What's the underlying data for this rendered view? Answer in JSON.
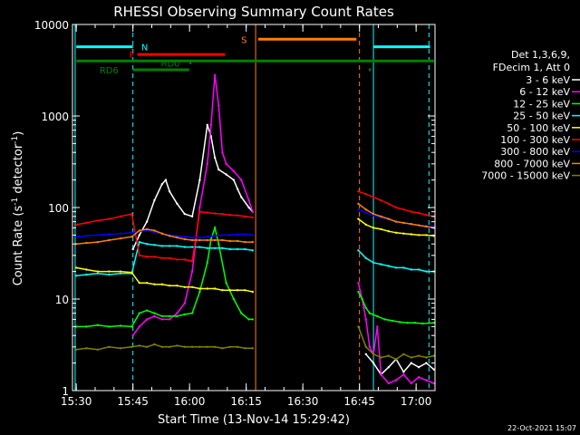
{
  "chart_data": {
    "type": "line",
    "title": "RHESSI Observing Summary Count Rates",
    "xlabel": "Start Time (13-Nov-14 15:29:42)",
    "ylabel_main": "Count Rate (s",
    "ylabel_sup1": "-1",
    "ylabel_mid": " detector",
    "ylabel_sup2": "-1",
    "ylabel_end": ")",
    "yscale": "log",
    "xlim_minutes": [
      -0.7,
      95.3
    ],
    "ylim": [
      1,
      10000
    ],
    "x_ticks": [
      {
        "minute": 0.3,
        "label": "15:30"
      },
      {
        "minute": 15.3,
        "label": "15:45"
      },
      {
        "minute": 30.3,
        "label": "16:00"
      },
      {
        "minute": 45.3,
        "label": "16:15"
      },
      {
        "minute": 60.3,
        "label": "16:30"
      },
      {
        "minute": 75.3,
        "label": "16:45"
      },
      {
        "minute": 90.3,
        "label": "17:00"
      }
    ],
    "y_ticks": [
      {
        "value": 1,
        "label": "1"
      },
      {
        "value": 10,
        "label": "10"
      },
      {
        "value": 100,
        "label": "100"
      },
      {
        "value": 1000,
        "label": "1000"
      },
      {
        "value": 10000,
        "label": "10000"
      }
    ],
    "legend_header": [
      "Det 1,3,6,9,",
      "FDecim 1, Att 0"
    ],
    "legend_placement": "right",
    "series": [
      {
        "name": "3 - 6 keV",
        "color": "#ffffff",
        "segments": [
          {
            "x": [
              15.3,
              17,
              19,
              21,
              23,
              24,
              25,
              27,
              29,
              31,
              33,
              35,
              36,
              37,
              38,
              40,
              42,
              43,
              44,
              46,
              47
            ],
            "y": [
              35,
              50,
              70,
              120,
              180,
              200,
              150,
              110,
              85,
              80,
              200,
              800,
              600,
              350,
              260,
              230,
              200,
              160,
              130,
              100,
              90
            ]
          },
          {
            "x": [
              77,
              79,
              81,
              83,
              85,
              87,
              89,
              91,
              93,
              95
            ],
            "y": [
              2.5,
              2,
              1.5,
              1.8,
              2.2,
              1.6,
              2,
              1.8,
              2,
              1.7
            ]
          }
        ]
      },
      {
        "name": "6 - 12 keV",
        "color": "#ff00ff",
        "segments": [
          {
            "x": [
              15.3,
              17,
              19,
              21,
              23,
              25,
              27,
              29,
              31,
              33,
              35,
              36,
              37,
              38,
              39,
              40,
              42,
              44,
              46,
              47
            ],
            "y": [
              4,
              5,
              6,
              6.5,
              6,
              6,
              7,
              9,
              20,
              100,
              300,
              800,
              2800,
              1300,
              400,
              300,
              250,
              200,
              120,
              90
            ]
          },
          {
            "x": [
              75,
              76,
              77,
              78,
              79,
              80,
              81,
              83,
              85,
              87,
              89,
              91,
              93,
              95
            ],
            "y": [
              15,
              10,
              6,
              3,
              2.5,
              5,
              1.5,
              1.2,
              1.3,
              1.5,
              1.2,
              1.4,
              1.3,
              1.2
            ]
          }
        ]
      },
      {
        "name": "12 - 25 keV",
        "color": "#00ff00",
        "segments": [
          {
            "x": [
              0.3,
              3,
              6,
              9,
              12,
              15,
              17,
              19,
              21,
              23,
              25,
              27,
              29,
              31,
              33,
              35,
              36,
              37,
              38,
              40,
              42,
              44,
              46,
              47
            ],
            "y": [
              5,
              5,
              5.2,
              5,
              5.1,
              5,
              7,
              7.5,
              7,
              6.5,
              6.5,
              6.5,
              6.8,
              7,
              12,
              25,
              45,
              60,
              40,
              15,
              10,
              7,
              6,
              6
            ]
          },
          {
            "x": [
              75,
              76,
              77,
              78,
              80,
              82,
              84,
              86,
              88,
              90,
              92,
              95
            ],
            "y": [
              12,
              10,
              8,
              7,
              6.5,
              6,
              5.8,
              5.6,
              5.5,
              5.5,
              5.4,
              5.5
            ]
          }
        ]
      },
      {
        "name": "25 - 50 keV",
        "color": "#00ffff",
        "segments": [
          {
            "x": [
              0.3,
              3,
              6,
              9,
              12,
              15,
              17,
              19,
              21,
              23,
              25,
              27,
              29,
              31,
              33,
              35,
              37,
              39,
              41,
              43,
              45,
              47
            ],
            "y": [
              18,
              18.5,
              19,
              18.5,
              19,
              19,
              42,
              40,
              39,
              38,
              38,
              38,
              37,
              37,
              37,
              36,
              36,
              36,
              35,
              35,
              35,
              34
            ]
          },
          {
            "x": [
              75,
              77,
              79,
              81,
              83,
              85,
              87,
              89,
              91,
              93,
              95
            ],
            "y": [
              34,
              28,
              25,
              24,
              23,
              22,
              22,
              21,
              21,
              20,
              20
            ]
          }
        ]
      },
      {
        "name": "50 - 100 keV",
        "color": "#ffff00",
        "segments": [
          {
            "x": [
              0.3,
              3,
              6,
              9,
              12,
              15,
              17,
              19,
              21,
              23,
              25,
              27,
              29,
              31,
              33,
              35,
              37,
              39,
              41,
              43,
              45,
              47
            ],
            "y": [
              22,
              21,
              20,
              20,
              20,
              19.5,
              15,
              15,
              14.5,
              14.5,
              14,
              14,
              13.5,
              13.5,
              13,
              13,
              13,
              12.5,
              12.5,
              12.5,
              12.5,
              12
            ]
          },
          {
            "x": [
              75,
              77,
              79,
              81,
              83,
              85,
              87,
              89,
              91,
              93,
              95
            ],
            "y": [
              75,
              65,
              60,
              58,
              55,
              53,
              52,
              51,
              50,
              50,
              49
            ]
          }
        ]
      },
      {
        "name": "100 - 300 keV",
        "color": "#ff0000",
        "segments": [
          {
            "x": [
              0.3,
              3,
              6,
              9,
              12,
              15,
              17,
              19,
              21,
              23,
              25,
              27,
              29,
              31,
              33,
              35,
              37,
              39,
              41,
              43,
              45,
              47
            ],
            "y": [
              65,
              68,
              72,
              75,
              80,
              85,
              30,
              29,
              29,
              28,
              28,
              27,
              27,
              26,
              90,
              88,
              86,
              85,
              83,
              82,
              80,
              78
            ]
          },
          {
            "x": [
              75,
              77,
              79,
              81,
              83,
              85,
              87,
              89,
              91,
              93,
              95
            ],
            "y": [
              150,
              140,
              130,
              120,
              110,
              100,
              95,
              90,
              87,
              83,
              80
            ]
          }
        ]
      },
      {
        "name": "300 - 800 keV",
        "color": "#0000ff",
        "segments": [
          {
            "x": [
              0.3,
              3,
              6,
              9,
              12,
              15,
              17,
              19,
              21,
              23,
              25,
              27,
              29,
              31,
              33,
              35,
              37,
              39,
              41,
              43,
              45,
              47
            ],
            "y": [
              48,
              49,
              50,
              51,
              52,
              53,
              55,
              56,
              54,
              52,
              50,
              49,
              48,
              47,
              47,
              48,
              49,
              50,
              50,
              51,
              51,
              50
            ]
          },
          {
            "x": [
              75,
              77,
              79,
              81,
              83,
              85,
              87,
              89,
              91,
              93,
              95
            ],
            "y": [
              95,
              88,
              82,
              78,
              74,
              70,
              68,
              66,
              64,
              63,
              62
            ]
          }
        ]
      },
      {
        "name": "800 - 7000 keV",
        "color": "#ff8000",
        "segments": [
          {
            "x": [
              0.3,
              3,
              6,
              9,
              12,
              15,
              17,
              19,
              21,
              23,
              25,
              27,
              29,
              31,
              33,
              35,
              37,
              39,
              41,
              43,
              45,
              47
            ],
            "y": [
              40,
              41,
              42,
              44,
              46,
              48,
              56,
              58,
              56,
              52,
              49,
              47,
              45,
              44,
              44,
              44,
              44,
              44,
              43,
              43,
              42,
              42
            ]
          },
          {
            "x": [
              75,
              77,
              79,
              81,
              83,
              85,
              87,
              89,
              91,
              93,
              95
            ],
            "y": [
              110,
              95,
              85,
              80,
              75,
              70,
              68,
              66,
              64,
              62,
              60
            ]
          }
        ]
      },
      {
        "name": "7000 - 15000 keV",
        "color": "#808000",
        "segments": [
          {
            "x": [
              0.3,
              3,
              6,
              9,
              12,
              15,
              17,
              19,
              21,
              23,
              25,
              27,
              29,
              31,
              33,
              35,
              37,
              39,
              41,
              43,
              45,
              47
            ],
            "y": [
              2.8,
              2.9,
              2.8,
              3,
              2.9,
              3,
              3.1,
              3,
              3.2,
              3,
              3,
              3.1,
              3,
              3,
              3,
              3,
              3,
              2.9,
              3,
              3,
              2.9,
              2.9
            ]
          },
          {
            "x": [
              75,
              77,
              79,
              81,
              83,
              85,
              87,
              89,
              91,
              93,
              95
            ],
            "y": [
              5,
              3,
              2.5,
              2.3,
              2.4,
              2.2,
              2.5,
              2.3,
              2.4,
              2.3,
              2.4
            ]
          }
        ]
      }
    ],
    "vertical_lines": [
      {
        "minute": 0.0,
        "color": "#00ffff",
        "style": "solid"
      },
      {
        "minute": 15.3,
        "color": "#00ffff",
        "style": "dashed"
      },
      {
        "minute": 47.8,
        "color": "#ff8000",
        "style": "solid"
      },
      {
        "minute": 75.3,
        "color": "#ff8000",
        "style": "dashed"
      },
      {
        "minute": 79.0,
        "color": "#00ffff",
        "style": "solid"
      },
      {
        "minute": 93.7,
        "color": "#00ffff",
        "style": "dashed"
      }
    ],
    "flag_bars": [
      {
        "label": "N",
        "color": "#00ffff",
        "value": 5700,
        "spans": [
          [
            0.3,
            15.3
          ],
          [
            79,
            94
          ]
        ],
        "label_minute": 17.5,
        "label_side": "right"
      },
      {
        "label": "S",
        "color": "#ff8000",
        "value": 6900,
        "spans": [
          [
            48.5,
            74.5
          ]
        ],
        "label_minute": 45.5,
        "label_side": "left"
      },
      {
        "label": "F",
        "color": "#ff0000",
        "value": 4700,
        "spans": [
          [
            16.5,
            39.7
          ]
        ],
        "label_minute": 15.7,
        "label_side": "left"
      },
      {
        "label": "",
        "color": "#008000",
        "value": 4000,
        "spans": [
          [
            0.3,
            95
          ]
        ],
        "label_minute": 0,
        "label_side": "none"
      },
      {
        "label": "RD0",
        "color": "#008000",
        "value": 3800,
        "spans": [
          [
            30.3,
            30.8
          ]
        ],
        "label_minute": 22.7,
        "label_side": "right"
      },
      {
        "label": "RD6",
        "color": "#008000",
        "value": 3200,
        "spans": [
          [
            15.3,
            30.2
          ],
          [
            77.8,
            78.3
          ]
        ],
        "label_minute": 11.5,
        "label_side": "left"
      }
    ],
    "grid": false
  },
  "footer_date": "22-Oct-2021 15:07"
}
